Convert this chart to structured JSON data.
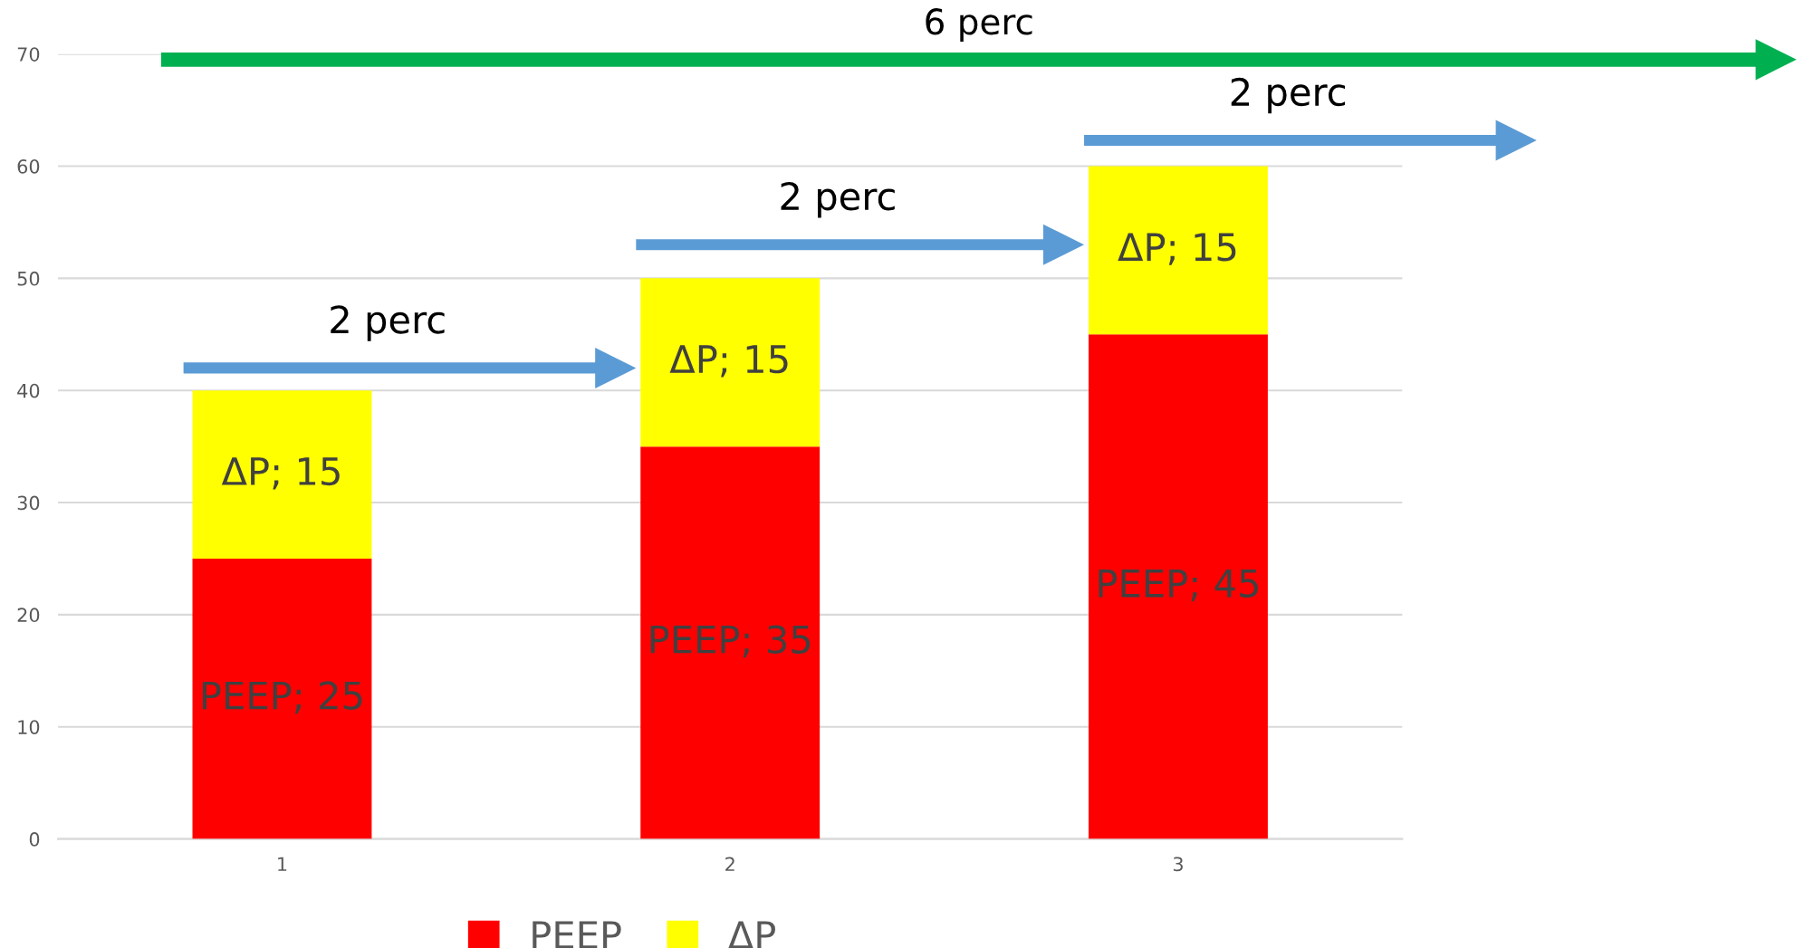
{
  "chart_data": {
    "type": "bar",
    "stacked": true,
    "categories": [
      "1",
      "2",
      "3"
    ],
    "series": [
      {
        "name": "PEEP",
        "color": "#ff0000",
        "values": [
          25,
          35,
          45
        ],
        "value_labels": [
          "PEEP; 25",
          "PEEP; 35",
          "PEEP; 45"
        ]
      },
      {
        "name": "ΔP",
        "color": "#ffff00",
        "values": [
          15,
          15,
          15
        ],
        "value_labels": [
          "ΔP; 15",
          "ΔP; 15",
          "ΔP; 15"
        ]
      }
    ],
    "ylim": [
      0,
      70
    ],
    "yticks": [
      0,
      10,
      20,
      30,
      40,
      50,
      60,
      70
    ],
    "grid": "y",
    "legend": "bottom",
    "annotations": [
      "6 perc",
      "2 perc",
      "2 perc",
      "2 perc"
    ]
  }
}
